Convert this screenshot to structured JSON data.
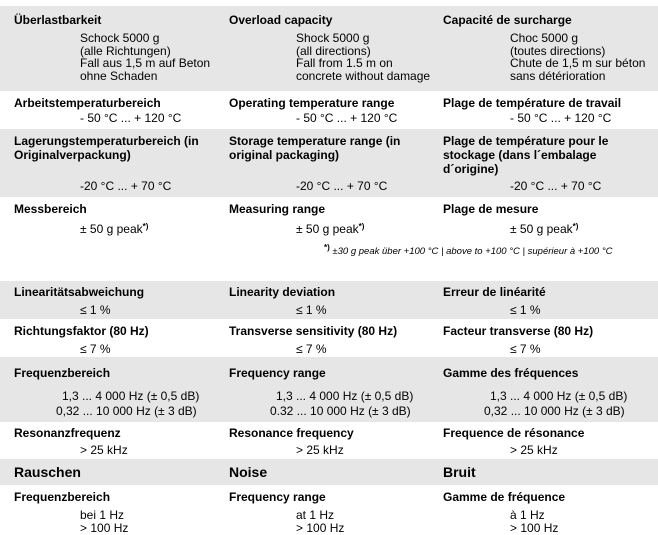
{
  "overload": {
    "de": {
      "label": "Überlastbarkeit",
      "lines": [
        "Schock 5000 g",
        "(alle Richtungen)",
        "Fall aus 1,5 m auf Beton",
        "ohne Schaden"
      ]
    },
    "en": {
      "label": "Overload capacity",
      "lines": [
        "Shock 5000 g",
        "(all directions)",
        "Fall from 1.5 m on",
        "concrete without damage"
      ]
    },
    "fr": {
      "label": "Capacité de surcharge",
      "lines": [
        "Choc 5000 g",
        "(toutes directions)",
        "Chute de 1,5 m sur béton",
        "sans détérioration"
      ]
    }
  },
  "operating_temp": {
    "de": {
      "label": "Arbeitstemperaturbereich",
      "value": "- 50 °C ... + 120 °C"
    },
    "en": {
      "label": "Operating temperature range",
      "value": "- 50 °C ... + 120 °C"
    },
    "fr": {
      "label": "Plage de température de travail",
      "value": "- 50 °C ... + 120 °C"
    }
  },
  "storage_temp": {
    "de": {
      "label_lines": [
        "Lagerungstemperaturbereich (in",
        "Originalverpackung)"
      ],
      "value": "-20 °C ... + 70 °C"
    },
    "en": {
      "label_lines": [
        "Storage temperature range (in",
        "original packaging)"
      ],
      "value": "-20 °C ... + 70 °C"
    },
    "fr": {
      "label_lines": [
        "Plage de température pour le",
        "stockage (dans l´embalage",
        "d´origine)"
      ],
      "value": "-20 °C ... + 70 °C"
    }
  },
  "measuring_range": {
    "de": {
      "label": "Messbereich",
      "value": "± 50 g peak"
    },
    "en": {
      "label": "Measuring range",
      "value": "± 50 g peak"
    },
    "fr": {
      "label": "Plage de mesure",
      "value": "± 50 g peak"
    },
    "sup": "*)",
    "footnote_mark": "*)",
    "footnote": "±30 g peak über +100 °C | above to +100 °C | supérieur à +100 °C"
  },
  "linearity": {
    "de": {
      "label": "Linearitätsabweichung",
      "value": "≤ 1 %"
    },
    "en": {
      "label": "Linearity deviation",
      "value": "≤ 1 %"
    },
    "fr": {
      "label": "Erreur de linéarité",
      "value": "≤ 1 %"
    }
  },
  "transverse": {
    "de": {
      "label": "Richtungsfaktor (80 Hz)",
      "value": "≤ 7 %"
    },
    "en": {
      "label": "Transverse sensitivity (80 Hz)",
      "value": "≤ 7 %"
    },
    "fr": {
      "label": "Facteur transverse (80 Hz)",
      "value": "≤ 7 %"
    }
  },
  "frequency_range": {
    "de": {
      "label": "Frequenzbereich",
      "lines": [
        "1,3 ... 4 000 Hz (± 0,5 dB)",
        "0,32 ... 10 000 Hz (± 3 dB)"
      ]
    },
    "en": {
      "label": "Frequency range",
      "lines": [
        "1,3 ... 4 000 Hz (± 0,5 dB)",
        "0.32 ... 10 000 Hz (± 3 dB)"
      ]
    },
    "fr": {
      "label": "Gamme des fréquences",
      "lines": [
        "1,3 ... 4 000 Hz (± 0,5 dB)",
        "0,32 ... 10 000 Hz (± 3 dB)"
      ]
    }
  },
  "resonance": {
    "de": {
      "label": "Resonanzfrequenz",
      "value": "> 25 kHz"
    },
    "en": {
      "label": "Resonance frequency",
      "value": "> 25 kHz"
    },
    "fr": {
      "label": "Frequence de résonance",
      "value": "> 25 kHz"
    }
  },
  "noise_heading": {
    "de": "Rauschen",
    "en": "Noise",
    "fr": "Bruit"
  },
  "noise_freq": {
    "de": {
      "label": "Frequenzbereich",
      "lines": [
        "bei 1 Hz",
        "> 100 Hz"
      ]
    },
    "en": {
      "label": "Frequency range",
      "lines": [
        "at 1 Hz",
        "> 100 Hz"
      ]
    },
    "fr": {
      "label": "Gamme de fréquence",
      "lines": [
        "à 1 Hz",
        "> 100 Hz"
      ]
    }
  }
}
